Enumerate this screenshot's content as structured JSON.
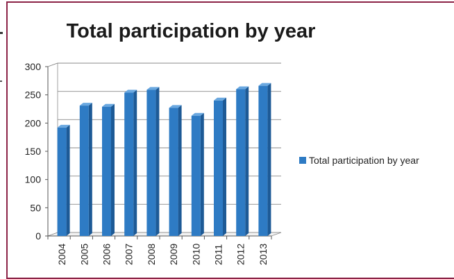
{
  "chart_data": {
    "type": "bar",
    "title": "Total participation by year",
    "categories": [
      "2004",
      "2005",
      "2006",
      "2007",
      "2008",
      "2009",
      "2010",
      "2011",
      "2012",
      "2013"
    ],
    "series": [
      {
        "name": "Total participation by year",
        "values": [
          192,
          231,
          229,
          254,
          259,
          227,
          213,
          240,
          260,
          266
        ],
        "color": "#2e7bc4"
      }
    ],
    "ylim": [
      0,
      300
    ],
    "yticks": [
      "0",
      "50",
      "100",
      "150",
      "200",
      "250",
      "300"
    ],
    "grid": true,
    "legend": "right",
    "style": "3d"
  }
}
